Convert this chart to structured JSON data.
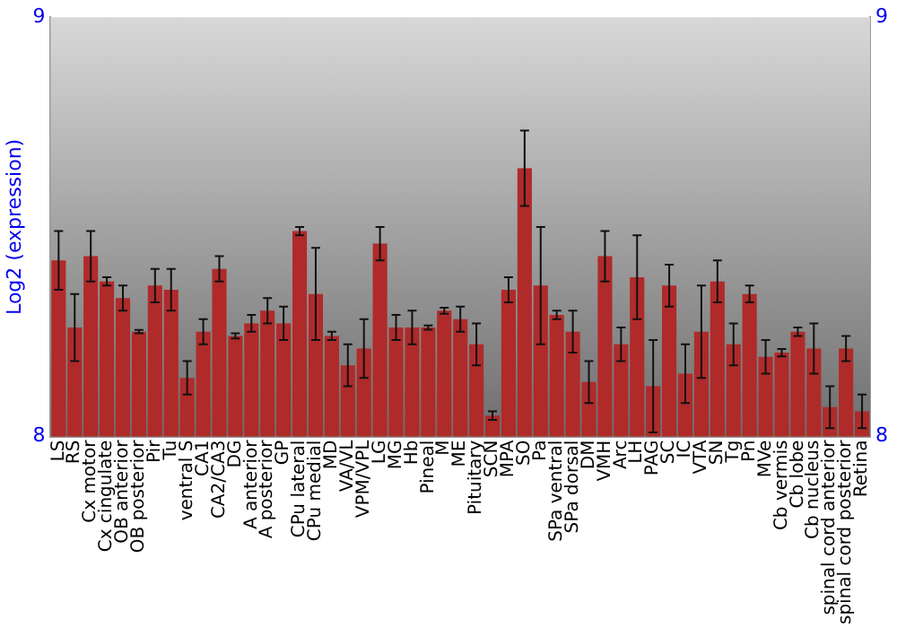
{
  "chart_data": {
    "type": "bar",
    "ylabel": "Log2 (expression)",
    "categories": [
      "LS",
      "RS",
      "Cx motor",
      "Cx cingulate",
      "OB anterior",
      "OB posterior",
      "Pir",
      "Tu",
      "ventral S",
      "CA1",
      "CA2/CA3",
      "DG",
      "A anterior",
      "A posterior",
      "GP",
      "CPu lateral",
      "CPu medial",
      "MD",
      "VA/VL",
      "VPM/VPL",
      "LG",
      "MG",
      "Hb",
      "Pineal",
      "M",
      "ME",
      "Pituitary",
      "SCN",
      "MPA",
      "SO",
      "Pa",
      "SPa ventral",
      "SPa dorsal",
      "DM",
      "VMH",
      "Arc",
      "LH",
      "PAG",
      "SC",
      "IC",
      "VTA",
      "SN",
      "Tg",
      "Pn",
      "MVe",
      "Cb vermis",
      "Cb lobe",
      "Cb nucleus",
      "spinal cord anterior",
      "spinal cord posterior",
      "Retina"
    ],
    "values": [
      8.42,
      8.26,
      8.43,
      8.37,
      8.33,
      8.25,
      8.36,
      8.35,
      8.14,
      8.25,
      8.4,
      8.24,
      8.27,
      8.3,
      8.27,
      8.49,
      8.34,
      8.24,
      8.17,
      8.21,
      8.46,
      8.26,
      8.26,
      8.26,
      8.3,
      8.28,
      8.22,
      8.05,
      8.35,
      8.64,
      8.36,
      8.29,
      8.25,
      8.13,
      8.43,
      8.22,
      8.38,
      8.12,
      8.36,
      8.15,
      8.25,
      8.37,
      8.22,
      8.34,
      8.19,
      8.2,
      8.25,
      8.21,
      8.07,
      8.21,
      8.06
    ],
    "errors": [
      0.07,
      0.08,
      0.06,
      0.01,
      0.03,
      0.004,
      0.04,
      0.05,
      0.04,
      0.03,
      0.03,
      0.006,
      0.02,
      0.03,
      0.04,
      0.01,
      0.11,
      0.01,
      0.05,
      0.07,
      0.04,
      0.03,
      0.04,
      0.005,
      0.007,
      0.03,
      0.05,
      0.01,
      0.03,
      0.09,
      0.14,
      0.01,
      0.05,
      0.05,
      0.06,
      0.04,
      0.1,
      0.11,
      0.05,
      0.07,
      0.11,
      0.05,
      0.05,
      0.02,
      0.04,
      0.009,
      0.01,
      0.06,
      0.05,
      0.03,
      0.04
    ],
    "color": "#b02a2a",
    "ylim": [
      8,
      9
    ],
    "yticks": [
      8,
      9
    ],
    "y2lim": [
      8,
      9
    ],
    "y2ticks": [
      8,
      9
    ],
    "grid": false,
    "legend": false
  }
}
